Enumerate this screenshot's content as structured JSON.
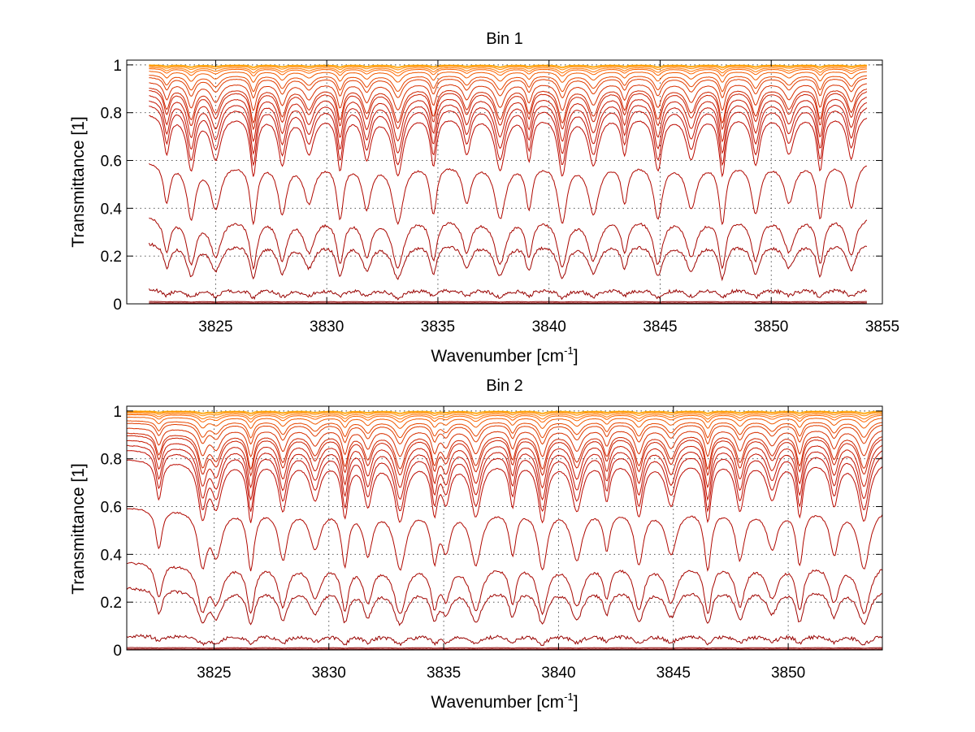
{
  "chart_data": [
    {
      "type": "line",
      "title": "Bin 1",
      "xlabel": "Wavenumber [cm",
      "xlabel_sup": "-1",
      "xlabel_suffix": "]",
      "ylabel": "Transmittance [1]",
      "xlim": [
        3821,
        3855
      ],
      "ylim": [
        0,
        1.02
      ],
      "data_x_range": [
        3822.0,
        3854.3
      ],
      "xticks": [
        3825,
        3830,
        3835,
        3840,
        3845,
        3850,
        3855
      ],
      "xtick_labels": [
        "3825",
        "3830",
        "3835",
        "3840",
        "3845",
        "3850",
        "3855"
      ],
      "yticks": [
        0,
        0.2,
        0.4,
        0.6,
        0.8,
        1
      ],
      "ytick_labels": [
        "0",
        "0.2",
        "0.4",
        "0.6",
        "0.8",
        "1"
      ],
      "grid": true,
      "legend": false,
      "series_count": 22,
      "series_baselines": [
        1.0,
        0.998,
        0.995,
        0.99,
        0.985,
        0.975,
        0.96,
        0.95,
        0.93,
        0.91,
        0.9,
        0.88,
        0.86,
        0.84,
        0.8,
        0.6,
        0.37,
        0.26,
        0.06,
        0.01,
        0.004,
        0.001
      ],
      "series_colors": [
        "#ffaa00",
        "#ff9900",
        "#ff8800",
        "#ff7700",
        "#ff6600",
        "#f05a00",
        "#e84800",
        "#e03c00",
        "#d83000",
        "#d02600",
        "#cc1e00",
        "#c81800",
        "#c41200",
        "#c00e00",
        "#bb0a00",
        "#b00800",
        "#a80600",
        "#a00400",
        "#980200",
        "#900000",
        "#880000",
        "#800000"
      ],
      "absorption_lines_cm-1": [
        3822.8,
        3823.9,
        3825.0,
        3826.7,
        3828.0,
        3829.2,
        3830.6,
        3831.8,
        3833.2,
        3834.8,
        3836.3,
        3837.8,
        3839.1,
        3840.6,
        3842.0,
        3843.4,
        3844.9,
        3846.4,
        3847.8,
        3849.3,
        3850.8,
        3852.2,
        3853.6
      ]
    },
    {
      "type": "line",
      "title": "Bin 2",
      "xlabel": "Wavenumber [cm",
      "xlabel_sup": "-1",
      "xlabel_suffix": "]",
      "ylabel": "Transmittance [1]",
      "xlim": [
        3821.2,
        3854.1
      ],
      "ylim": [
        0,
        1.02
      ],
      "data_x_range": [
        3821.2,
        3854.1
      ],
      "xticks": [
        3825,
        3830,
        3835,
        3840,
        3845,
        3850
      ],
      "xtick_labels": [
        "3825",
        "3830",
        "3835",
        "3840",
        "3845",
        "3850"
      ],
      "yticks": [
        0,
        0.2,
        0.4,
        0.6,
        0.8,
        1
      ],
      "ytick_labels": [
        "0",
        "0.2",
        "0.4",
        "0.6",
        "0.8",
        "1"
      ],
      "grid": true,
      "legend": false,
      "series_count": 22,
      "series_baselines": [
        1.0,
        0.998,
        0.995,
        0.99,
        0.985,
        0.975,
        0.96,
        0.95,
        0.93,
        0.91,
        0.9,
        0.88,
        0.86,
        0.84,
        0.8,
        0.6,
        0.37,
        0.26,
        0.06,
        0.01,
        0.004,
        0.001
      ],
      "series_colors": [
        "#ffaa00",
        "#ff9900",
        "#ff8800",
        "#ff7700",
        "#ff6600",
        "#f05a00",
        "#e84800",
        "#e03c00",
        "#d83000",
        "#d02600",
        "#cc1e00",
        "#c81800",
        "#c41200",
        "#c00e00",
        "#bb0a00",
        "#b00800",
        "#a80600",
        "#a00400",
        "#980200",
        "#900000",
        "#880000",
        "#800000"
      ],
      "absorption_lines_cm-1": [
        3822.6,
        3824.5,
        3825.1,
        3826.6,
        3828.0,
        3829.4,
        3830.7,
        3831.7,
        3833.1,
        3834.6,
        3835.1,
        3836.4,
        3838.0,
        3839.3,
        3840.8,
        3842.1,
        3843.5,
        3844.9,
        3846.5,
        3847.9,
        3849.3,
        3850.5,
        3852.0,
        3853.3
      ]
    }
  ]
}
